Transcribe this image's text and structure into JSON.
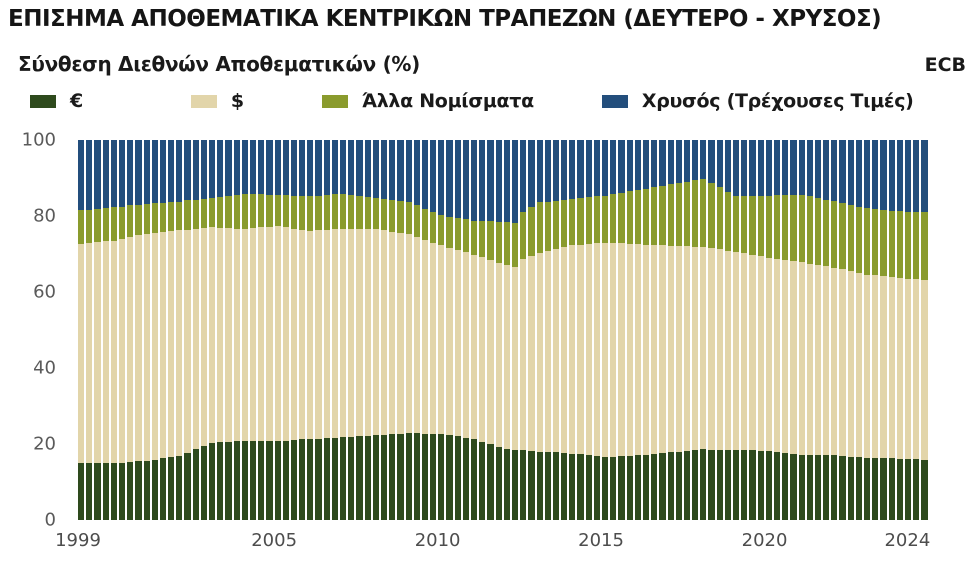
{
  "header": {
    "title": "ΕΠΙΣΗΜΑ ΑΠΟΘΕΜΑΤΙΚΑ ΚΕΝΤΡΙΚΩΝ ΤΡΑΠΕΖΩΝ (ΔΕΥΤΕΡΟ - ΧΡΥΣΟΣ)",
    "subtitle": "Σύνθεση Διεθνών Αποθεματικών (%)",
    "source_label": "ECB"
  },
  "colors": {
    "euro": "#2e4a1d",
    "dollar": "#e2d5aa",
    "other": "#8a9b2d",
    "gold": "#234e7c",
    "background": "#ffffff",
    "axis_text": "#5a5a5a"
  },
  "legend": [
    {
      "label": "€",
      "color": "#2e4a1d"
    },
    {
      "label": "$",
      "color": "#e2d5aa"
    },
    {
      "label": "Άλλα Νομίσματα",
      "color": "#8a9b2d"
    },
    {
      "label": "Χρυσός (Τρέχουσες Τιμές)",
      "color": "#234e7c"
    }
  ],
  "chart_data": {
    "type": "bar",
    "stacked": true,
    "title": "ΕΠΙΣΗΜΑ ΑΠΟΘΕΜΑΤΙΚΑ ΚΕΝΤΡΙΚΩΝ ΤΡΑΠΕΖΩΝ (ΔΕΥΤΕΡΟ - ΧΡΥΣΟΣ)",
    "subtitle": "Σύνθεση Διεθνών Αποθεματικών (%)",
    "source": "ECB",
    "grid": false,
    "legend_position": "top",
    "x_axis": {
      "start_year": 1999,
      "end_year": 2024,
      "frequency": "quarterly",
      "tick_labels": [
        "1999",
        "2005",
        "2010",
        "2015",
        "2020",
        "2024"
      ]
    },
    "y_axis": {
      "unit": "%",
      "range": [
        0,
        100
      ],
      "ticks": [
        0,
        20,
        40,
        60,
        80,
        100
      ]
    },
    "series": [
      {
        "name": "€",
        "color": "#2e4a1d",
        "values": [
          15.0,
          15.0,
          15.0,
          15.0,
          15.0,
          15.1,
          15.3,
          15.4,
          15.5,
          15.8,
          16.2,
          16.5,
          16.8,
          17.7,
          18.6,
          19.4,
          20.3,
          20.4,
          20.6,
          20.7,
          20.8,
          20.8,
          20.8,
          20.8,
          20.8,
          20.9,
          21.1,
          21.2,
          21.3,
          21.4,
          21.6,
          21.7,
          21.8,
          21.9,
          22.1,
          22.2,
          22.3,
          22.4,
          22.6,
          22.7,
          22.8,
          22.8,
          22.7,
          22.7,
          22.6,
          22.3,
          22.0,
          21.6,
          21.3,
          20.6,
          20.0,
          19.3,
          18.6,
          18.5,
          18.3,
          18.2,
          18.0,
          17.9,
          17.8,
          17.6,
          17.5,
          17.3,
          17.0,
          16.8,
          16.5,
          16.6,
          16.8,
          16.9,
          17.0,
          17.2,
          17.4,
          17.6,
          17.8,
          18.0,
          18.2,
          18.4,
          18.6,
          18.5,
          18.5,
          18.4,
          18.3,
          18.3,
          18.3,
          18.2,
          18.2,
          18.0,
          17.7,
          17.5,
          17.2,
          17.2,
          17.1,
          17.1,
          17.1,
          16.9,
          16.7,
          16.6,
          16.4,
          16.3,
          16.2,
          16.2,
          16.1,
          16.0,
          16.0,
          15.9
        ]
      },
      {
        "name": "$",
        "color": "#e2d5aa",
        "values": [
          57.7,
          57.9,
          58.1,
          58.3,
          58.5,
          58.9,
          59.1,
          59.5,
          59.8,
          59.7,
          59.6,
          59.5,
          59.4,
          58.7,
          58.0,
          57.4,
          56.7,
          56.5,
          56.2,
          56.0,
          55.8,
          56.0,
          56.2,
          56.3,
          56.5,
          56.1,
          55.6,
          55.1,
          54.7,
          54.8,
          54.7,
          54.8,
          54.8,
          54.7,
          54.5,
          54.4,
          54.3,
          53.9,
          53.3,
          52.9,
          52.4,
          51.7,
          51.1,
          50.3,
          49.7,
          49.4,
          49.1,
          48.8,
          48.5,
          48.5,
          48.4,
          48.4,
          48.4,
          48.1,
          50.3,
          51.3,
          52.3,
          52.9,
          53.5,
          54.2,
          54.8,
          55.2,
          55.6,
          56.0,
          56.5,
          56.3,
          56.0,
          55.8,
          55.6,
          55.3,
          55.0,
          54.7,
          54.4,
          54.1,
          53.8,
          53.5,
          53.2,
          53.0,
          52.7,
          52.5,
          52.3,
          51.9,
          51.5,
          51.2,
          50.8,
          50.7,
          50.7,
          50.7,
          50.7,
          50.3,
          50.0,
          49.7,
          49.3,
          49.1,
          48.8,
          48.5,
          48.2,
          48.1,
          47.9,
          47.7,
          47.5,
          47.5,
          47.4,
          47.3
        ]
      },
      {
        "name": "Άλλα Νομίσματα",
        "color": "#8a9b2d",
        "values": [
          8.8,
          8.8,
          8.8,
          8.8,
          8.8,
          8.5,
          8.4,
          8.1,
          7.9,
          7.9,
          7.7,
          7.7,
          7.6,
          7.7,
          7.7,
          7.8,
          7.8,
          8.2,
          8.5,
          8.9,
          9.2,
          8.9,
          8.7,
          8.5,
          8.2,
          8.5,
          8.7,
          9.1,
          9.3,
          9.2,
          9.3,
          9.2,
          9.2,
          9.0,
          8.7,
          8.5,
          8.2,
          8.2,
          8.3,
          8.3,
          8.4,
          8.3,
          8.1,
          8.1,
          7.9,
          8.1,
          8.4,
          8.7,
          9.0,
          9.6,
          10.2,
          10.7,
          11.3,
          11.6,
          12.4,
          12.9,
          13.3,
          13.0,
          12.7,
          12.4,
          12.1,
          12.2,
          12.3,
          12.4,
          12.4,
          12.9,
          13.3,
          13.8,
          14.2,
          14.7,
          15.2,
          15.6,
          16.1,
          16.6,
          17.0,
          17.5,
          18.0,
          17.2,
          16.4,
          15.5,
          14.7,
          15.1,
          15.6,
          16.0,
          16.4,
          16.8,
          17.1,
          17.4,
          17.7,
          17.7,
          17.7,
          17.5,
          17.5,
          17.4,
          17.5,
          17.4,
          17.4,
          17.4,
          17.5,
          17.5,
          17.6,
          17.6,
          17.7,
          17.8
        ]
      },
      {
        "name": "Χρυσός (Τρέχουσες Τιμές)",
        "color": "#234e7c",
        "values": [
          18.5,
          18.3,
          18.1,
          17.9,
          17.7,
          17.5,
          17.2,
          17.0,
          16.8,
          16.6,
          16.5,
          16.3,
          16.2,
          15.9,
          15.7,
          15.4,
          15.2,
          14.9,
          14.7,
          14.4,
          14.2,
          14.3,
          14.3,
          14.4,
          14.5,
          14.5,
          14.6,
          14.6,
          14.7,
          14.6,
          14.4,
          14.3,
          14.2,
          14.4,
          14.7,
          14.9,
          15.2,
          15.5,
          15.8,
          16.1,
          16.4,
          17.2,
          18.1,
          18.9,
          19.8,
          20.2,
          20.5,
          20.9,
          21.2,
          21.3,
          21.4,
          21.6,
          21.7,
          21.8,
          19.0,
          17.6,
          16.4,
          16.2,
          16.0,
          15.8,
          15.6,
          15.3,
          15.1,
          14.8,
          14.6,
          14.2,
          13.9,
          13.5,
          13.2,
          12.8,
          12.4,
          12.1,
          11.7,
          11.3,
          11.0,
          10.6,
          10.2,
          11.3,
          12.4,
          13.6,
          14.7,
          14.7,
          14.6,
          14.6,
          14.6,
          14.5,
          14.5,
          14.4,
          14.4,
          14.8,
          15.2,
          15.7,
          16.1,
          16.6,
          17.0,
          17.5,
          18.0,
          18.2,
          18.4,
          18.6,
          18.8,
          18.9,
          18.9,
          19.0
        ]
      }
    ]
  }
}
